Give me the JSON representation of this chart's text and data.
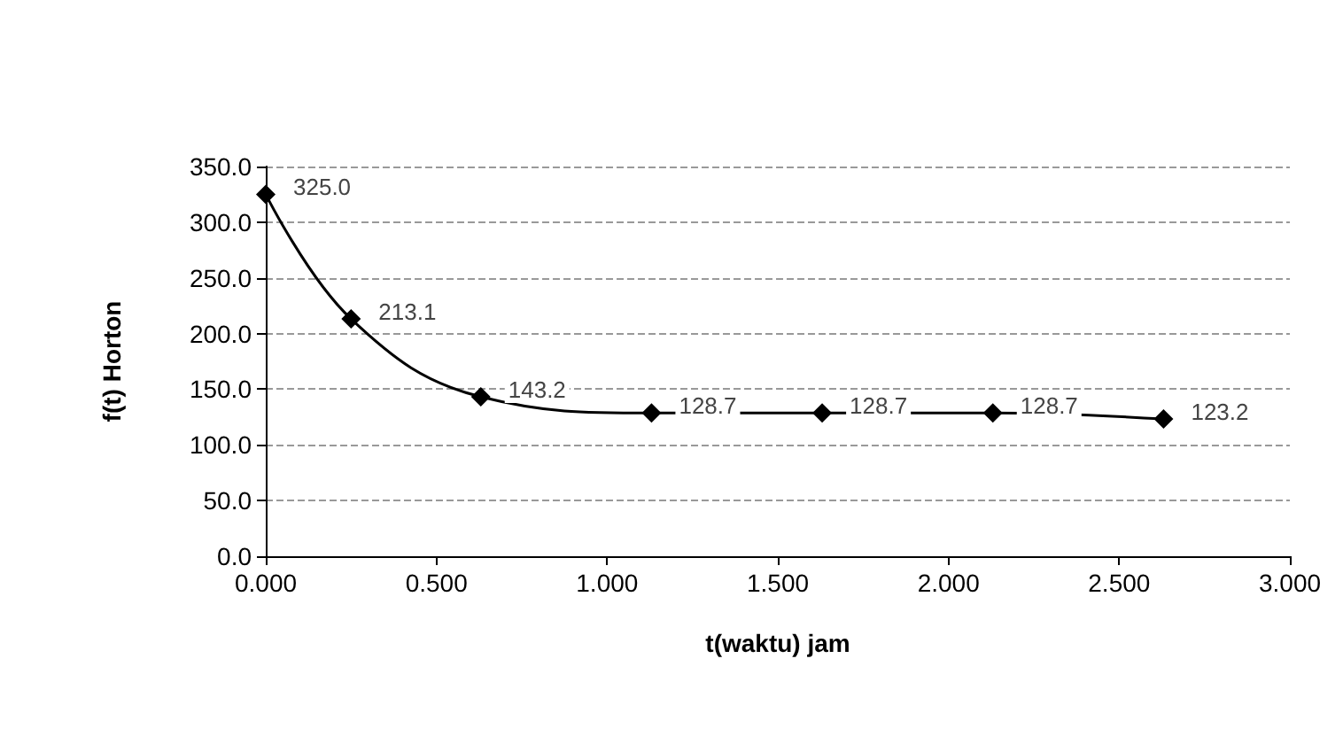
{
  "chart_data": {
    "type": "line",
    "xlabel": "t(waktu) jam",
    "ylabel": "f(t) Horton",
    "x": [
      0,
      0.25,
      0.63,
      1.13,
      1.63,
      2.13,
      2.63
    ],
    "series": [
      {
        "color": "#000000",
        "values": [
          325.0,
          213.1,
          143.2,
          128.7,
          128.7,
          128.7,
          123.2
        ],
        "value_labels": [
          "325.0",
          "213.1",
          "143.2",
          "128.7",
          "128.7",
          "128.7",
          "123.2"
        ]
      }
    ],
    "xlim": [
      0,
      3
    ],
    "xticks": [
      {
        "value": 0,
        "label": "0.000"
      },
      {
        "value": 0.5,
        "label": "0.500"
      },
      {
        "value": 1,
        "label": "1.000"
      },
      {
        "value": 1.5,
        "label": "1.500"
      },
      {
        "value": 2,
        "label": "2.000"
      },
      {
        "value": 2.5,
        "label": "2.500"
      },
      {
        "value": 3,
        "label": "3.000"
      }
    ],
    "ylim": [
      0,
      350
    ],
    "yticks": [
      {
        "value": 0,
        "label": "0.0"
      },
      {
        "value": 50,
        "label": "50.0"
      },
      {
        "value": 100,
        "label": "100.0"
      },
      {
        "value": 150,
        "label": "150.0"
      },
      {
        "value": 200,
        "label": "200.0"
      },
      {
        "value": 250,
        "label": "250.0"
      },
      {
        "value": 300,
        "label": "300.0"
      },
      {
        "value": 350,
        "label": "350.0"
      }
    ],
    "grid": "y",
    "marker": "diamond",
    "line_style": "solid"
  }
}
